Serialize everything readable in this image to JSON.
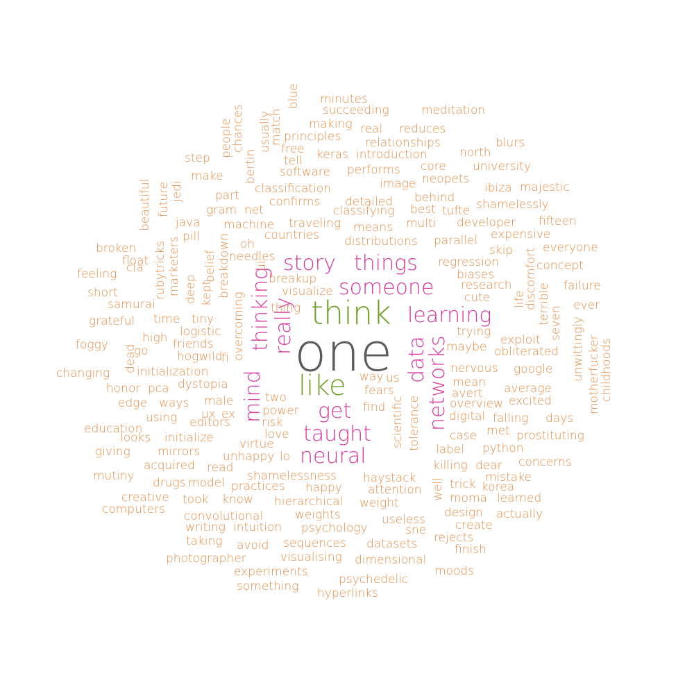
{
  "palette": {
    "hero": "#5b5b5b",
    "green": "#73a02b",
    "magenta": "#d6389d",
    "orange": "#e38c43"
  },
  "words": [
    {
      "text": "one",
      "color": "hero"
    },
    {
      "text": "think",
      "color": "green"
    },
    {
      "text": "like",
      "color": "green"
    },
    {
      "text": "story",
      "color": "magenta"
    },
    {
      "text": "things",
      "color": "magenta"
    },
    {
      "text": "someone",
      "color": "magenta"
    },
    {
      "text": "learning",
      "color": "magenta"
    },
    {
      "text": "get",
      "color": "magenta"
    },
    {
      "text": "taught",
      "color": "magenta"
    },
    {
      "text": "neural",
      "color": "magenta"
    },
    {
      "text": "data",
      "color": "magenta"
    },
    {
      "text": "networks",
      "color": "magenta"
    },
    {
      "text": "really",
      "color": "magenta"
    },
    {
      "text": "thinking",
      "color": "magenta"
    },
    {
      "text": "mind",
      "color": "magenta"
    },
    {
      "text": "minutes",
      "color": "orange"
    },
    {
      "text": "succeeding",
      "color": "orange"
    },
    {
      "text": "meditation",
      "color": "orange"
    },
    {
      "text": "making",
      "color": "orange"
    },
    {
      "text": "real",
      "color": "orange"
    },
    {
      "text": "reduces",
      "color": "orange"
    },
    {
      "text": "principles",
      "color": "orange"
    },
    {
      "text": "relationships",
      "color": "orange"
    },
    {
      "text": "blurs",
      "color": "orange"
    },
    {
      "text": "free",
      "color": "orange"
    },
    {
      "text": "keras",
      "color": "orange"
    },
    {
      "text": "introduction",
      "color": "orange"
    },
    {
      "text": "north",
      "color": "orange"
    },
    {
      "text": "tell",
      "color": "orange"
    },
    {
      "text": "core",
      "color": "orange"
    },
    {
      "text": "university",
      "color": "orange"
    },
    {
      "text": "step",
      "color": "orange"
    },
    {
      "text": "software",
      "color": "orange"
    },
    {
      "text": "performs",
      "color": "orange"
    },
    {
      "text": "make",
      "color": "orange"
    },
    {
      "text": "neopets",
      "color": "orange"
    },
    {
      "text": "ibiza",
      "color": "orange"
    },
    {
      "text": "image",
      "color": "orange"
    },
    {
      "text": "majestic",
      "color": "orange"
    },
    {
      "text": "classification",
      "color": "orange"
    },
    {
      "text": "part",
      "color": "orange"
    },
    {
      "text": "behind",
      "color": "orange"
    },
    {
      "text": "confirms",
      "color": "orange"
    },
    {
      "text": "detailed",
      "color": "orange"
    },
    {
      "text": "shamelessly",
      "color": "orange"
    },
    {
      "text": "gram",
      "color": "orange"
    },
    {
      "text": "net",
      "color": "orange"
    },
    {
      "text": "classifying",
      "color": "orange"
    },
    {
      "text": "best",
      "color": "orange"
    },
    {
      "text": "tufte",
      "color": "orange"
    },
    {
      "text": "traveling",
      "color": "orange"
    },
    {
      "text": "java",
      "color": "orange"
    },
    {
      "text": "machine",
      "color": "orange"
    },
    {
      "text": "multi",
      "color": "orange"
    },
    {
      "text": "developer",
      "color": "orange"
    },
    {
      "text": "fifteen",
      "color": "orange"
    },
    {
      "text": "means",
      "color": "orange"
    },
    {
      "text": "pill",
      "color": "orange"
    },
    {
      "text": "countries",
      "color": "orange"
    },
    {
      "text": "expensive",
      "color": "orange"
    },
    {
      "text": "distributions",
      "color": "orange"
    },
    {
      "text": "parallel",
      "color": "orange"
    },
    {
      "text": "oh",
      "color": "orange"
    },
    {
      "text": "broken",
      "color": "orange"
    },
    {
      "text": "everyone",
      "color": "orange"
    },
    {
      "text": "needles",
      "color": "orange"
    },
    {
      "text": "skip",
      "color": "orange"
    },
    {
      "text": "float",
      "color": "orange"
    },
    {
      "text": "regression",
      "color": "orange"
    },
    {
      "text": "concept",
      "color": "orange"
    },
    {
      "text": "feeling",
      "color": "orange"
    },
    {
      "text": "breakup",
      "color": "orange"
    },
    {
      "text": "biases",
      "color": "orange"
    },
    {
      "text": "cia",
      "color": "orange"
    },
    {
      "text": "research",
      "color": "orange"
    },
    {
      "text": "failure",
      "color": "orange"
    },
    {
      "text": "short",
      "color": "orange"
    },
    {
      "text": "visualize",
      "color": "orange"
    },
    {
      "text": "cute",
      "color": "orange"
    },
    {
      "text": "samurai",
      "color": "orange"
    },
    {
      "text": "thing",
      "color": "orange"
    },
    {
      "text": "ever",
      "color": "orange"
    },
    {
      "text": "grateful",
      "color": "orange"
    },
    {
      "text": "time",
      "color": "orange"
    },
    {
      "text": "tiny",
      "color": "orange"
    },
    {
      "text": "logistic",
      "color": "orange"
    },
    {
      "text": "trying",
      "color": "orange"
    },
    {
      "text": "high",
      "color": "orange"
    },
    {
      "text": "exploit",
      "color": "orange"
    },
    {
      "text": "foggy",
      "color": "orange"
    },
    {
      "text": "friends",
      "color": "orange"
    },
    {
      "text": "maybe",
      "color": "orange"
    },
    {
      "text": "go",
      "color": "orange"
    },
    {
      "text": "obliterated",
      "color": "orange"
    },
    {
      "text": "hogwild",
      "color": "orange"
    },
    {
      "text": "fi",
      "color": "orange"
    },
    {
      "text": "changing",
      "color": "orange"
    },
    {
      "text": "initialization",
      "color": "orange"
    },
    {
      "text": "nervous",
      "color": "orange"
    },
    {
      "text": "google",
      "color": "orange"
    },
    {
      "text": "way",
      "color": "orange"
    },
    {
      "text": "us",
      "color": "orange"
    },
    {
      "text": "honor",
      "color": "orange"
    },
    {
      "text": "pca",
      "color": "orange"
    },
    {
      "text": "dystopia",
      "color": "orange"
    },
    {
      "text": "mean",
      "color": "orange"
    },
    {
      "text": "average",
      "color": "orange"
    },
    {
      "text": "fears",
      "color": "orange"
    },
    {
      "text": "avert",
      "color": "orange"
    },
    {
      "text": "edge",
      "color": "orange"
    },
    {
      "text": "ways",
      "color": "orange"
    },
    {
      "text": "male",
      "color": "orange"
    },
    {
      "text": "two",
      "color": "orange"
    },
    {
      "text": "excited",
      "color": "orange"
    },
    {
      "text": "overview",
      "color": "orange"
    },
    {
      "text": "ux",
      "color": "orange"
    },
    {
      "text": "ex",
      "color": "orange"
    },
    {
      "text": "find",
      "color": "orange"
    },
    {
      "text": "power",
      "color": "orange"
    },
    {
      "text": "digital",
      "color": "orange"
    },
    {
      "text": "using",
      "color": "orange"
    },
    {
      "text": "falling",
      "color": "orange"
    },
    {
      "text": "days",
      "color": "orange"
    },
    {
      "text": "editors",
      "color": "orange"
    },
    {
      "text": "risk",
      "color": "orange"
    },
    {
      "text": "education",
      "color": "orange"
    },
    {
      "text": "met",
      "color": "orange"
    },
    {
      "text": "looks",
      "color": "orange"
    },
    {
      "text": "initialize",
      "color": "orange"
    },
    {
      "text": "love",
      "color": "orange"
    },
    {
      "text": "case",
      "color": "orange"
    },
    {
      "text": "prostituting",
      "color": "orange"
    },
    {
      "text": "virtue",
      "color": "orange"
    },
    {
      "text": "giving",
      "color": "orange"
    },
    {
      "text": "mirrors",
      "color": "orange"
    },
    {
      "text": "python",
      "color": "orange"
    },
    {
      "text": "label",
      "color": "orange"
    },
    {
      "text": "unhappy",
      "color": "orange"
    },
    {
      "text": "lo",
      "color": "orange"
    },
    {
      "text": "acquired",
      "color": "orange"
    },
    {
      "text": "read",
      "color": "orange"
    },
    {
      "text": "killing",
      "color": "orange"
    },
    {
      "text": "dear",
      "color": "orange"
    },
    {
      "text": "concerns",
      "color": "orange"
    },
    {
      "text": "mutiny",
      "color": "orange"
    },
    {
      "text": "shamelessness",
      "color": "orange"
    },
    {
      "text": "haystack",
      "color": "orange"
    },
    {
      "text": "mistake",
      "color": "orange"
    },
    {
      "text": "drugs",
      "color": "orange"
    },
    {
      "text": "model",
      "color": "orange"
    },
    {
      "text": "practices",
      "color": "orange"
    },
    {
      "text": "happy",
      "color": "orange"
    },
    {
      "text": "trick",
      "color": "orange"
    },
    {
      "text": "attention",
      "color": "orange"
    },
    {
      "text": "korea",
      "color": "orange"
    },
    {
      "text": "creative",
      "color": "orange"
    },
    {
      "text": "took",
      "color": "orange"
    },
    {
      "text": "know",
      "color": "orange"
    },
    {
      "text": "moma",
      "color": "orange"
    },
    {
      "text": "learned",
      "color": "orange"
    },
    {
      "text": "hierarchical",
      "color": "orange"
    },
    {
      "text": "weight",
      "color": "orange"
    },
    {
      "text": "computers",
      "color": "orange"
    },
    {
      "text": "convolutional",
      "color": "orange"
    },
    {
      "text": "weights",
      "color": "orange"
    },
    {
      "text": "design",
      "color": "orange"
    },
    {
      "text": "actually",
      "color": "orange"
    },
    {
      "text": "useless",
      "color": "orange"
    },
    {
      "text": "writing",
      "color": "orange"
    },
    {
      "text": "intuition",
      "color": "orange"
    },
    {
      "text": "psychology",
      "color": "orange"
    },
    {
      "text": "create",
      "color": "orange"
    },
    {
      "text": "sne",
      "color": "orange"
    },
    {
      "text": "rejects",
      "color": "orange"
    },
    {
      "text": "taking",
      "color": "orange"
    },
    {
      "text": "avoid",
      "color": "orange"
    },
    {
      "text": "sequences",
      "color": "orange"
    },
    {
      "text": "datasets",
      "color": "orange"
    },
    {
      "text": "finish",
      "color": "orange"
    },
    {
      "text": "photographer",
      "color": "orange"
    },
    {
      "text": "visualising",
      "color": "orange"
    },
    {
      "text": "dimensional",
      "color": "orange"
    },
    {
      "text": "experiments",
      "color": "orange"
    },
    {
      "text": "moods",
      "color": "orange"
    },
    {
      "text": "psychedelic",
      "color": "orange"
    },
    {
      "text": "something",
      "color": "orange"
    },
    {
      "text": "hyperlinks",
      "color": "orange"
    },
    {
      "text": "blue",
      "color": "orange"
    },
    {
      "text": "match",
      "color": "orange"
    },
    {
      "text": "usually",
      "color": "orange"
    },
    {
      "text": "people",
      "color": "orange"
    },
    {
      "text": "chances",
      "color": "orange"
    },
    {
      "text": "bertin",
      "color": "orange"
    },
    {
      "text": "beautiful",
      "color": "orange"
    },
    {
      "text": "future",
      "color": "orange"
    },
    {
      "text": "jedi",
      "color": "orange"
    },
    {
      "text": "rubytricks",
      "color": "orange"
    },
    {
      "text": "marketers",
      "color": "orange"
    },
    {
      "text": "deep",
      "color": "orange"
    },
    {
      "text": "kept",
      "color": "orange"
    },
    {
      "text": "belief",
      "color": "orange"
    },
    {
      "text": "breakdown",
      "color": "orange"
    },
    {
      "text": "ui",
      "color": "orange"
    },
    {
      "text": "overcoming",
      "color": "orange"
    },
    {
      "text": "dead",
      "color": "orange"
    },
    {
      "text": "scientific",
      "color": "orange"
    },
    {
      "text": "tolerance",
      "color": "orange"
    },
    {
      "text": "well",
      "color": "orange"
    },
    {
      "text": "life",
      "color": "orange"
    },
    {
      "text": "discomfort",
      "color": "orange"
    },
    {
      "text": "terrible",
      "color": "orange"
    },
    {
      "text": "seven",
      "color": "orange"
    },
    {
      "text": "unwittingly",
      "color": "orange"
    },
    {
      "text": "motherfucker",
      "color": "orange"
    },
    {
      "text": "childhoods",
      "color": "orange"
    }
  ]
}
